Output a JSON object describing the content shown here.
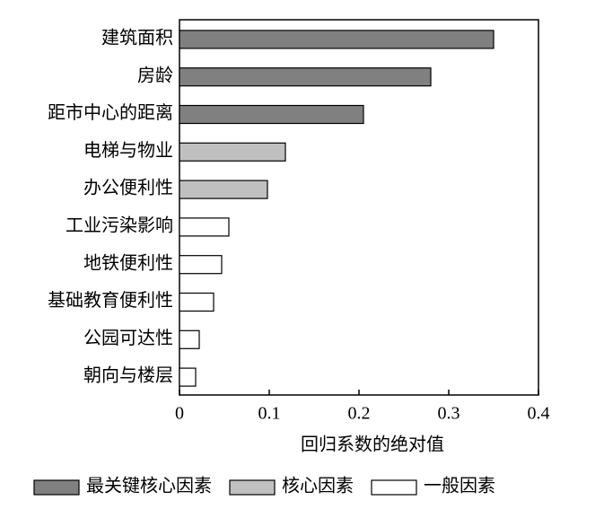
{
  "chart_data": {
    "type": "hbar",
    "x_label": "回归系数的绝对值",
    "categories": [
      "建筑面积",
      "房龄",
      "距市中心的距离",
      "电梯与物业",
      "办公便利性",
      "工业污染影响",
      "地铁便利性",
      "基础教育便利性",
      "公园可达性",
      "朝向与楼层"
    ],
    "series": [
      {
        "name": "最关键核心因素",
        "color": "#808080",
        "values": [
          0.35,
          0.28,
          0.205,
          null,
          null,
          null,
          null,
          null,
          null,
          null
        ]
      },
      {
        "name": "核心因素",
        "color": "#c0c0c0",
        "values": [
          null,
          null,
          null,
          0.118,
          0.098,
          null,
          null,
          null,
          null,
          null
        ]
      },
      {
        "name": "一般因素",
        "color": "#ffffff",
        "values": [
          null,
          null,
          null,
          null,
          null,
          0.055,
          0.047,
          0.038,
          0.022,
          0.018
        ]
      }
    ],
    "xlim": [
      0,
      0.4
    ],
    "xticks": [
      0,
      0.1,
      0.2,
      0.3,
      0.4
    ],
    "legend": "bottom"
  }
}
